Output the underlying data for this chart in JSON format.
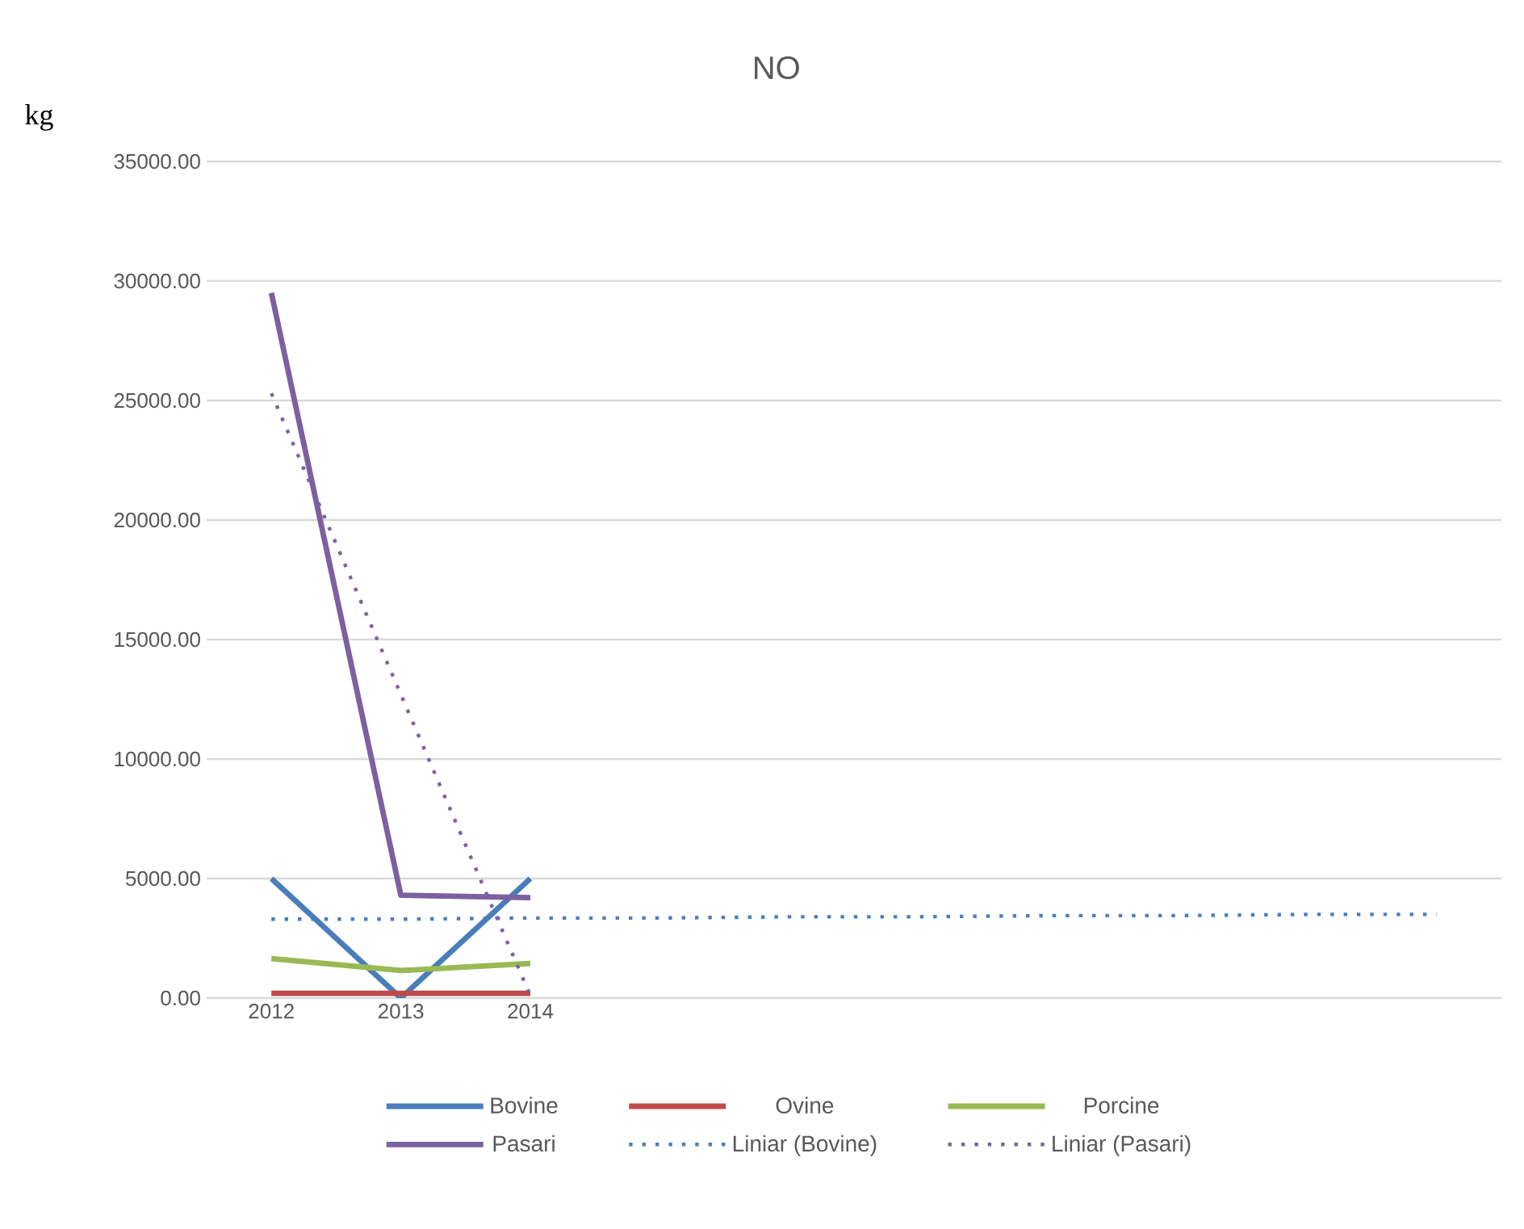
{
  "chart_data": {
    "type": "line",
    "title": "NO",
    "ylabel": "kg",
    "categories": [
      "2012",
      "2013",
      "2014",
      null,
      null,
      null,
      null,
      null,
      null,
      null
    ],
    "series": [
      {
        "name": "Bovine",
        "color": "#4a7ebb",
        "values": [
          5000,
          0,
          5000,
          null,
          null,
          null,
          null,
          null,
          null,
          null
        ]
      },
      {
        "name": "Ovine",
        "color": "#be4b48",
        "values": [
          200,
          200,
          200,
          null,
          null,
          null,
          null,
          null,
          null,
          null
        ]
      },
      {
        "name": "Porcine",
        "color": "#98b954",
        "values": [
          1650,
          1150,
          1450,
          null,
          null,
          null,
          null,
          null,
          null,
          null
        ]
      },
      {
        "name": "Pasari",
        "color": "#7d60a0",
        "values": [
          29500,
          4300,
          4200,
          null,
          null,
          null,
          null,
          null,
          null,
          null
        ]
      },
      {
        "name": "Liniar (Bovine)",
        "color": "#4a7ebb",
        "line_style": "dotted",
        "values": [
          3300,
          3300,
          3350,
          3350,
          3400,
          3400,
          3450,
          3450,
          3500,
          3500
        ]
      },
      {
        "name": "Liniar (Pasari)",
        "color": "#7d60a0",
        "line_style": "dotted",
        "values": [
          25300,
          12700,
          100,
          null,
          null,
          null,
          null,
          null,
          null,
          null
        ]
      }
    ],
    "ylim": [
      0,
      35000
    ],
    "yticks": [
      {
        "value": 0,
        "label": "0.00"
      },
      {
        "value": 5000,
        "label": "5000.00"
      },
      {
        "value": 10000,
        "label": "10000.00"
      },
      {
        "value": 15000,
        "label": "15000.00"
      },
      {
        "value": 20000,
        "label": "20000.00"
      },
      {
        "value": 25000,
        "label": "25000.00"
      },
      {
        "value": 30000,
        "label": "30000.00"
      },
      {
        "value": 35000,
        "label": "35000.00"
      }
    ],
    "grid": "y",
    "legend": "bottom",
    "marker": "none",
    "line_style": "solid"
  }
}
